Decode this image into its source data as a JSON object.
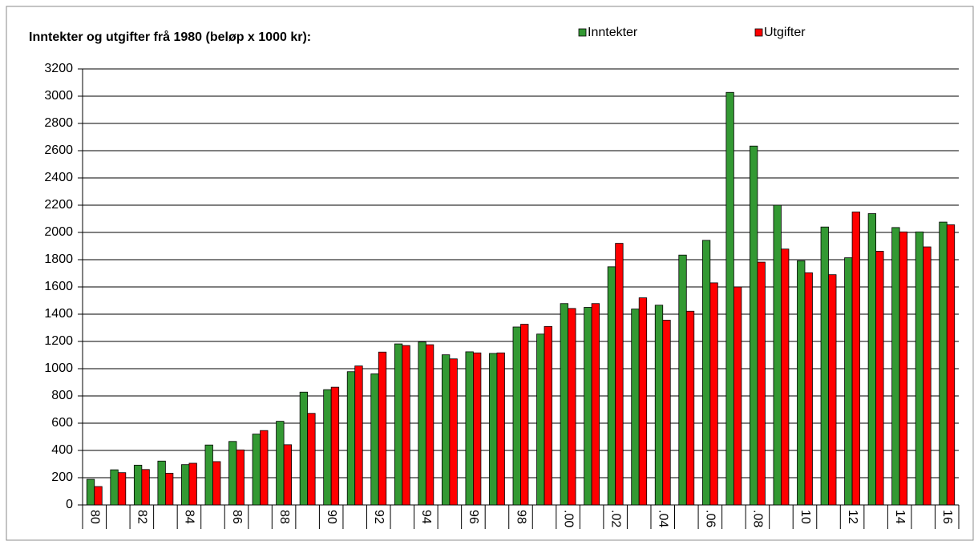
{
  "chart_data": {
    "type": "bar",
    "title": "Inntekter og utgifter frå 1980 (beløp x 1000 kr):",
    "categories": [
      "80",
      null,
      "82",
      null,
      "84",
      null,
      "86",
      null,
      "88",
      null,
      "90",
      null,
      "92",
      null,
      "94",
      null,
      "96",
      null,
      "98",
      null,
      ".00",
      null,
      ".02",
      null,
      ".04",
      null,
      ".06",
      null,
      ".08",
      null,
      "10",
      null,
      "12",
      null,
      "14",
      null,
      "16"
    ],
    "series": [
      {
        "name": "Inntekter",
        "color": "#339933",
        "values": [
          188,
          258,
          292,
          322,
          296,
          440,
          466,
          520,
          614,
          828,
          846,
          978,
          962,
          1182,
          1196,
          1102,
          1124,
          1112,
          1306,
          1254,
          1478,
          1450,
          1748,
          1438,
          1466,
          1834,
          1942,
          3028,
          2634,
          2200,
          1792,
          2040,
          1814,
          2138,
          2036,
          2004,
          2076
        ]
      },
      {
        "name": "Utgifter",
        "color": "#ff0000",
        "values": [
          135,
          237,
          260,
          233,
          306,
          318,
          404,
          546,
          442,
          672,
          864,
          1020,
          1122,
          1170,
          1176,
          1072,
          1116,
          1116,
          1326,
          1310,
          1442,
          1478,
          1920,
          1520,
          1356,
          1422,
          1630,
          1600,
          1782,
          1878,
          1704,
          1690,
          2150,
          1862,
          2004,
          1894,
          2056
        ]
      }
    ],
    "ylim": [
      0,
      3200
    ],
    "yticks": [
      0,
      200,
      400,
      600,
      800,
      1000,
      1200,
      1400,
      1600,
      1800,
      2000,
      2200,
      2400,
      2600,
      2800,
      3000,
      3200
    ],
    "grid": true,
    "legend": "top"
  }
}
